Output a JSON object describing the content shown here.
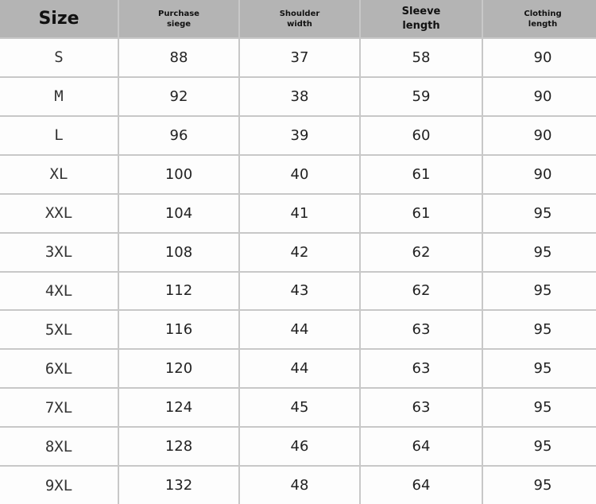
{
  "table": {
    "header": [
      "Size",
      "Purchase siege",
      "Shoulder width",
      "Sleeve length",
      "Clothing length"
    ],
    "rows": [
      [
        "S",
        88,
        37,
        58,
        90
      ],
      [
        "M",
        92,
        38,
        59,
        90
      ],
      [
        "L",
        96,
        39,
        60,
        90
      ],
      [
        "XL",
        100,
        40,
        61,
        90
      ],
      [
        "XXL",
        104,
        41,
        61,
        95
      ],
      [
        "3XL",
        108,
        42,
        62,
        95
      ],
      [
        "4XL",
        112,
        43,
        62,
        95
      ],
      [
        "5XL",
        116,
        44,
        63,
        95
      ],
      [
        "6XL",
        120,
        44,
        63,
        95
      ],
      [
        "7XL",
        124,
        45,
        63,
        95
      ],
      [
        "8XL",
        128,
        46,
        64,
        95
      ],
      [
        "9XL",
        132,
        48,
        64,
        95
      ]
    ]
  }
}
